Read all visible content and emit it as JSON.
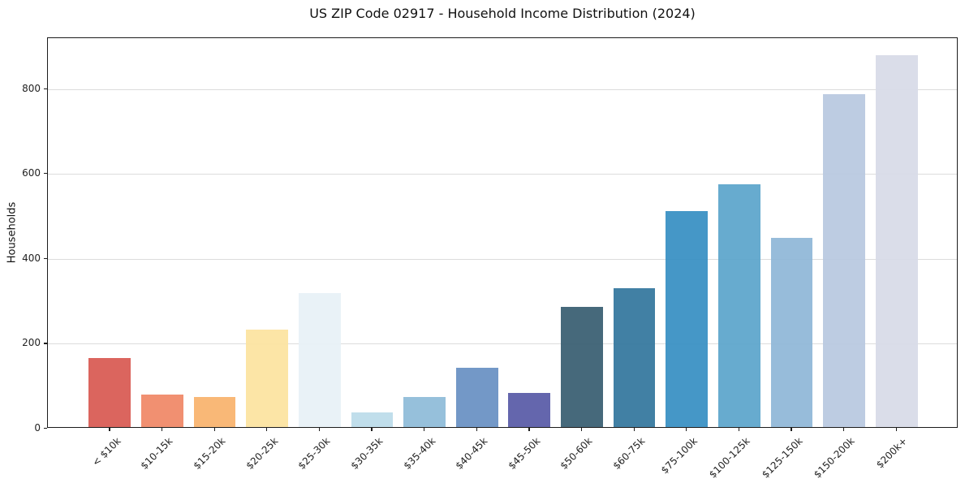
{
  "chart_data": {
    "type": "bar",
    "title": "US ZIP Code 02917 - Household Income Distribution (2024)",
    "xlabel": "",
    "ylabel": "Households",
    "categories": [
      "< $10k",
      "$10-15k",
      "$15-20k",
      "$20-25k",
      "$25-30k",
      "$30-35k",
      "$35-40k",
      "$40-45k",
      "$45-50k",
      "$50-60k",
      "$60-75k",
      "$75-100k",
      "$100-125k",
      "$125-150k",
      "$150-200k",
      "$200k+"
    ],
    "values": [
      162,
      76,
      70,
      229,
      315,
      34,
      71,
      139,
      80,
      283,
      328,
      508,
      572,
      445,
      784,
      876
    ],
    "bar_colors": [
      "#d95b54",
      "#f08968",
      "#f9b46e",
      "#fce3a0",
      "#e8f1f6",
      "#bcdcea",
      "#8fbcd9",
      "#6a92c4",
      "#5a5ca8",
      "#3a6073",
      "#35789e",
      "#3990c4",
      "#5da6cc",
      "#90b8d8",
      "#b9c9e0",
      "#d8dbe8"
    ],
    "ylim": [
      0,
      920
    ],
    "yticks": [
      0,
      200,
      400,
      600,
      800
    ],
    "grid": "horizontal-only",
    "gridline_color": "#dcdcdc",
    "legend": "none",
    "background_color": "#ffffff",
    "spine_color": "#1c1c1c"
  }
}
